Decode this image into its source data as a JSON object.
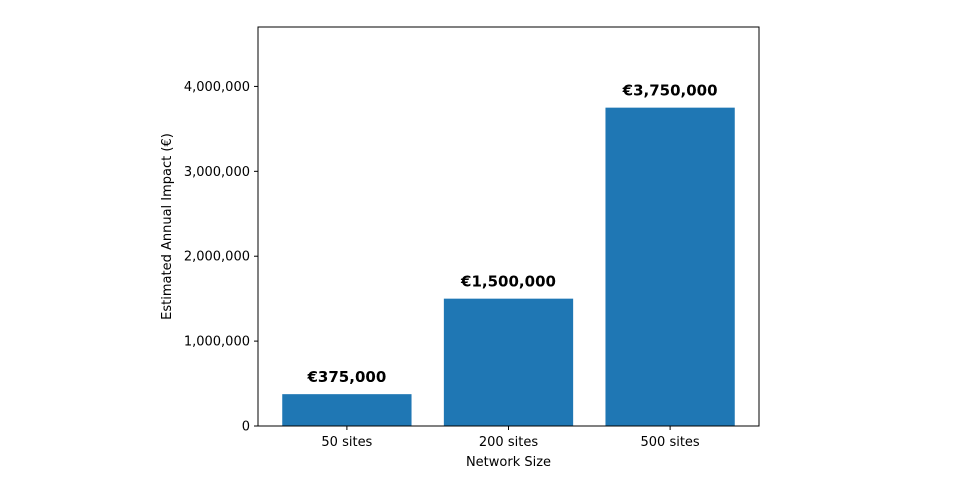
{
  "chart_data": {
    "type": "bar",
    "title": "",
    "xlabel": "Network Size",
    "ylabel": "Estimated Annual Impact (€)",
    "categories": [
      "50 sites",
      "200 sites",
      "500 sites"
    ],
    "values": [
      375000,
      1500000,
      3750000
    ],
    "data_labels": [
      "€375,000",
      "€1,500,000",
      "€3,750,000"
    ],
    "ylim": [
      0,
      4700000
    ],
    "yticks": [
      0,
      1000000,
      2000000,
      3000000,
      4000000
    ],
    "ytick_labels": [
      "0",
      "1,000,000",
      "2,000,000",
      "3,000,000",
      "4,000,000"
    ],
    "grid": false,
    "bar_color": "#1f77b4"
  }
}
